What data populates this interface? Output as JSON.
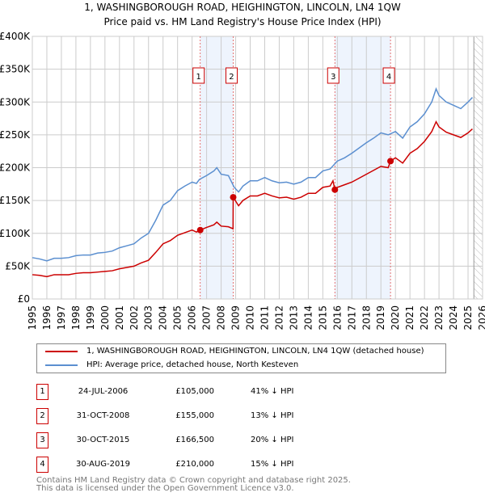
{
  "chart_data": {
    "type": "line",
    "title": "1, WASHINGBOROUGH ROAD, HEIGHINGTON, LINCOLN, LN4 1QW",
    "subtitle": "Price paid vs. HM Land Registry's House Price Index (HPI)",
    "xlim": [
      1995,
      2026
    ],
    "ylim": [
      0,
      400000
    ],
    "x_ticks": [
      "1995",
      "1996",
      "1997",
      "1998",
      "1999",
      "2000",
      "2001",
      "2002",
      "2003",
      "2004",
      "2005",
      "2006",
      "2007",
      "2008",
      "2009",
      "2010",
      "2011",
      "2012",
      "2013",
      "2014",
      "2015",
      "2016",
      "2017",
      "2018",
      "2019",
      "2020",
      "2021",
      "2022",
      "2023",
      "2024",
      "2025",
      "2026"
    ],
    "y_ticks": [
      {
        "v": 0,
        "label": "£0"
      },
      {
        "v": 50000,
        "label": "£50K"
      },
      {
        "v": 100000,
        "label": "£100K"
      },
      {
        "v": 150000,
        "label": "£150K"
      },
      {
        "v": 200000,
        "label": "£200K"
      },
      {
        "v": 250000,
        "label": "£250K"
      },
      {
        "v": 300000,
        "label": "£300K"
      },
      {
        "v": 350000,
        "label": "£350K"
      },
      {
        "v": 400000,
        "label": "£400K"
      }
    ],
    "grid": true,
    "shaded_ranges": [
      [
        2006.56,
        2008.83
      ],
      [
        2015.83,
        2019.66
      ]
    ],
    "hatched_from": 2025.4,
    "series": [
      {
        "name": "1, WASHINGBOROUGH ROAD, HEIGHINGTON, LINCOLN, LN4 1QW (detached house)",
        "color": "#cc0000",
        "x": [
          1995,
          1995.5,
          1996,
          1996.5,
          1997,
          1997.5,
          1998,
          1998.5,
          1999,
          1999.5,
          2000,
          2000.5,
          2001,
          2001.5,
          2002,
          2002.5,
          2003,
          2003.5,
          2004,
          2004.5,
          2005,
          2005.5,
          2006,
          2006.3,
          2006.56,
          2007,
          2007.5,
          2007.7,
          2008,
          2008.5,
          2008.82,
          2008.83,
          2009.2,
          2009.5,
          2010,
          2010.5,
          2011,
          2011.5,
          2012,
          2012.5,
          2013,
          2013.5,
          2014,
          2014.5,
          2015,
          2015.5,
          2015.7,
          2015.83,
          2016,
          2016.5,
          2017,
          2017.5,
          2018,
          2018.5,
          2019,
          2019.5,
          2019.66,
          2020,
          2020.5,
          2021,
          2021.5,
          2022,
          2022.5,
          2022.8,
          2023,
          2023.5,
          2024,
          2024.5,
          2025,
          2025.3
        ],
        "y": [
          37,
          36,
          34,
          37,
          37,
          37,
          39,
          40,
          40,
          41,
          42,
          43,
          46,
          48,
          50,
          55,
          59,
          71,
          84,
          89,
          97,
          101,
          105,
          102,
          105,
          109,
          113,
          117,
          111,
          110,
          107,
          155,
          142,
          150,
          157,
          157,
          161,
          157,
          154,
          155,
          152,
          155,
          161,
          161,
          170,
          172,
          180,
          166.5,
          170,
          174,
          178,
          184,
          190,
          196,
          202,
          200,
          210,
          215,
          207,
          222,
          229,
          240,
          255,
          270,
          262,
          254,
          250,
          246,
          253,
          259
        ],
        "y_unit": "thousand GBP"
      },
      {
        "name": "HPI: Average price, detached house, North Kesteven",
        "color": "#5b8fd0",
        "x": [
          1995,
          1995.5,
          1996,
          1996.5,
          1997,
          1997.5,
          1998,
          1998.5,
          1999,
          1999.5,
          2000,
          2000.5,
          2001,
          2001.5,
          2002,
          2002.5,
          2003,
          2003.5,
          2004,
          2004.5,
          2005,
          2005.5,
          2006,
          2006.3,
          2006.5,
          2007,
          2007.5,
          2007.7,
          2008,
          2008.5,
          2008.9,
          2009.2,
          2009.5,
          2010,
          2010.5,
          2011,
          2011.5,
          2012,
          2012.5,
          2013,
          2013.5,
          2014,
          2014.5,
          2015,
          2015.5,
          2016,
          2016.5,
          2017,
          2017.5,
          2018,
          2018.5,
          2019,
          2019.5,
          2020,
          2020.5,
          2021,
          2021.5,
          2022,
          2022.5,
          2022.8,
          2023,
          2023.5,
          2024,
          2024.5,
          2025,
          2025.3
        ],
        "y": [
          63,
          61,
          58,
          62,
          62,
          63,
          66,
          67,
          67,
          70,
          71,
          73,
          78,
          81,
          84,
          93,
          100,
          120,
          143,
          150,
          165,
          172,
          178,
          176,
          182,
          188,
          195,
          200,
          190,
          188,
          170,
          163,
          172,
          180,
          180,
          185,
          180,
          177,
          178,
          175,
          178,
          185,
          185,
          195,
          198,
          210,
          215,
          222,
          230,
          238,
          245,
          253,
          250,
          255,
          245,
          262,
          270,
          282,
          300,
          320,
          310,
          300,
          295,
          290,
          300,
          307
        ],
        "y_unit": "thousand GBP"
      }
    ],
    "sales": [
      {
        "id": "1",
        "x": 2006.56,
        "y": 105
      },
      {
        "id": "2",
        "x": 2008.83,
        "y": 155
      },
      {
        "id": "3",
        "x": 2015.83,
        "y": 166.5
      },
      {
        "id": "4",
        "x": 2019.66,
        "y": 210
      }
    ]
  },
  "legend": {
    "property": "1, WASHINGBOROUGH ROAD, HEIGHINGTON, LINCOLN, LN4 1QW (detached house)",
    "hpi": "HPI: Average price, detached house, North Kesteven"
  },
  "transactions": [
    {
      "id": "1",
      "date": "24-JUL-2006",
      "price": "£105,000",
      "hpi": "41% ↓ HPI"
    },
    {
      "id": "2",
      "date": "31-OCT-2008",
      "price": "£155,000",
      "hpi": "13% ↓ HPI"
    },
    {
      "id": "3",
      "date": "30-OCT-2015",
      "price": "£166,500",
      "hpi": "20% ↓ HPI"
    },
    {
      "id": "4",
      "date": "30-AUG-2019",
      "price": "£210,000",
      "hpi": "15% ↓ HPI"
    }
  ],
  "footer": {
    "line1": "Contains HM Land Registry data © Crown copyright and database right 2025.",
    "line2": "This data is licensed under the Open Government Licence v3.0."
  }
}
